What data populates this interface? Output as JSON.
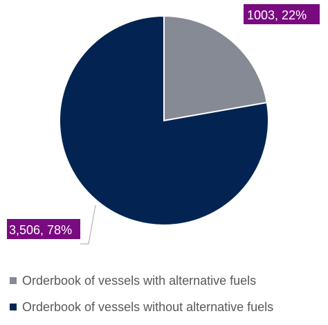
{
  "chart_data": {
    "type": "pie",
    "slices": [
      {
        "name": "Orderbook of vessels with alternative fuels",
        "value": 1003,
        "percent": 22,
        "label": "1003, 22%",
        "color": "#858a95"
      },
      {
        "name": "Orderbook of vessels without alternative fuels",
        "value": 3506,
        "percent": 78,
        "label": "3,506, 78%",
        "color": "#032452"
      }
    ],
    "label_background": "#7a0a80",
    "start_angle": "12 o'clock",
    "direction": "clockwise",
    "legend_position": "bottom"
  }
}
